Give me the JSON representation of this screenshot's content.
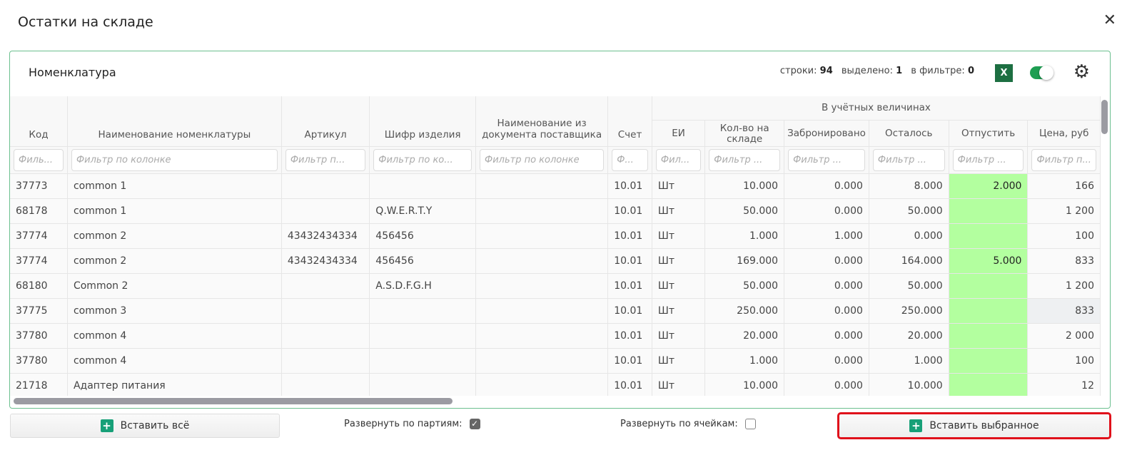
{
  "window": {
    "title": "Остатки на складе",
    "close": "✕"
  },
  "panel": {
    "title": "Номенклатура",
    "stats": {
      "rows_label": "строки:",
      "rows": "94",
      "selected_label": "выделено:",
      "selected": "1",
      "filter_label": "в фильтре:",
      "filter": "0"
    },
    "excel": "X",
    "toggle_on": true
  },
  "table": {
    "group_header": "В учётных величинах",
    "columns": [
      "Код",
      "Наименование номенклатуры",
      "Артикул",
      "Шифр изделия",
      "Наименование из документа поставщика",
      "Счет",
      "ЕИ",
      "Кол-во на складе",
      "Забронировано",
      "Осталось",
      "Отпустить",
      "Цена, руб"
    ],
    "filters": [
      "Филь...",
      "Фильтр по колонке",
      "Фильтр п...",
      "Фильтр по ко...",
      "Фильтр по колонке",
      "Ф...",
      "Фил...",
      "Фильтр ...",
      "Фильтр ...",
      "Фильтр ...",
      "Фильтр ...",
      "Фильтр п..."
    ],
    "rows": [
      [
        "37773",
        "common 1",
        "",
        "",
        "",
        "10.01",
        "Шт",
        "10.000",
        "0.000",
        "8.000",
        "2.000",
        "166"
      ],
      [
        "68178",
        "common 1",
        "",
        "Q.W.E.R.T.Y",
        "",
        "10.01",
        "Шт",
        "50.000",
        "0.000",
        "50.000",
        "",
        "1 200"
      ],
      [
        "37774",
        "common 2",
        "43432434334",
        "456456",
        "",
        "10.01",
        "Шт",
        "1.000",
        "1.000",
        "0.000",
        "",
        "100"
      ],
      [
        "37774",
        "common 2",
        "43432434334",
        "456456",
        "",
        "10.01",
        "Шт",
        "169.000",
        "0.000",
        "164.000",
        "5.000",
        "833"
      ],
      [
        "68180",
        "Common 2",
        "",
        "A.S.D.F.G.H",
        "",
        "10.01",
        "Шт",
        "50.000",
        "0.000",
        "50.000",
        "",
        "1 200"
      ],
      [
        "37775",
        "common 3",
        "",
        "",
        "",
        "10.01",
        "Шт",
        "250.000",
        "0.000",
        "250.000",
        "",
        "833"
      ],
      [
        "37780",
        "common 4",
        "",
        "",
        "",
        "10.01",
        "Шт",
        "20.000",
        "0.000",
        "20.000",
        "",
        "2 000"
      ],
      [
        "37780",
        "common 4",
        "",
        "",
        "",
        "10.01",
        "Шт",
        "1.000",
        "0.000",
        "1.000",
        "",
        "100"
      ],
      [
        "21718",
        "Адаптер питания",
        "",
        "",
        "",
        "10.01",
        "Шт",
        "10.000",
        "0.000",
        "10.000",
        "",
        "12"
      ]
    ]
  },
  "footer": {
    "insert_all": "Вставить всё",
    "expand_batches": "Развернуть по партиям:",
    "expand_batches_checked": true,
    "expand_cells": "Развернуть по ячейкам:",
    "expand_cells_checked": false,
    "insert_selected": "Вставить выбранное"
  },
  "colors": {
    "accent": "#17a078",
    "highlight": "#b3ff9f",
    "selection_outline": "#e0111b"
  }
}
